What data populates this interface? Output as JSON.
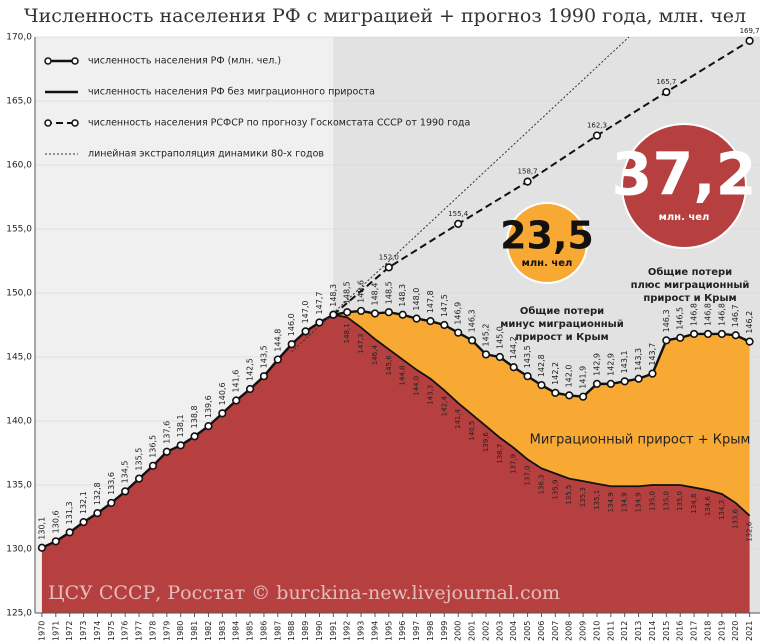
{
  "chart_data": {
    "type": "line",
    "title": "Численность населения РФ с миграцией + прогноз 1990 года, млн. чел",
    "xlim": [
      1969.5,
      2021.75
    ],
    "ylim": [
      125,
      170
    ],
    "xticks": [
      1970,
      1971,
      1972,
      1973,
      1974,
      1975,
      1976,
      1977,
      1978,
      1979,
      1980,
      1981,
      1982,
      1983,
      1984,
      1985,
      1986,
      1987,
      1988,
      1989,
      1990,
      1991,
      1992,
      1993,
      1994,
      1995,
      1996,
      1997,
      1998,
      1999,
      2000,
      2001,
      2002,
      2003,
      2004,
      2005,
      2006,
      2007,
      2008,
      2009,
      2010,
      2011,
      2012,
      2013,
      2014,
      2015,
      2016,
      2017,
      2018,
      2019,
      2020,
      2021
    ],
    "yticks": [
      {
        "value": 125,
        "label": "125,0"
      },
      {
        "value": 130,
        "label": "130,0"
      },
      {
        "value": 135,
        "label": "135,0"
      },
      {
        "value": 140,
        "label": "140,0"
      },
      {
        "value": 145,
        "label": "145,0"
      },
      {
        "value": 150,
        "label": "150,0"
      },
      {
        "value": 155,
        "label": "155,0"
      },
      {
        "value": 160,
        "label": "160,0"
      },
      {
        "value": 165,
        "label": "165,0"
      },
      {
        "value": 170,
        "label": "170,0"
      }
    ],
    "grid": true,
    "series": [
      {
        "name": "численность населения РФ (млн. чел.)",
        "color": "#111111",
        "line_style": "solid",
        "markers": true,
        "x": [
          1970,
          1971,
          1972,
          1973,
          1974,
          1975,
          1976,
          1977,
          1978,
          1979,
          1980,
          1981,
          1982,
          1983,
          1984,
          1985,
          1986,
          1987,
          1988,
          1989,
          1990,
          1991,
          1992,
          1993,
          1994,
          1995,
          1996,
          1997,
          1998,
          1999,
          2000,
          2001,
          2002,
          2003,
          2004,
          2005,
          2006,
          2007,
          2008,
          2009,
          2010,
          2011,
          2012,
          2013,
          2014,
          2015,
          2016,
          2017,
          2018,
          2019,
          2020,
          2021
        ],
        "values": [
          130.1,
          130.6,
          131.3,
          132.1,
          132.8,
          133.6,
          134.5,
          135.5,
          136.5,
          137.6,
          138.1,
          138.8,
          139.6,
          140.6,
          141.6,
          142.5,
          143.5,
          144.8,
          146.0,
          147.0,
          147.7,
          148.3,
          148.5,
          148.6,
          148.4,
          148.5,
          148.3,
          148.0,
          147.8,
          147.5,
          146.9,
          146.3,
          145.2,
          145.0,
          144.2,
          143.5,
          142.8,
          142.2,
          142.0,
          141.9,
          142.9,
          142.9,
          143.1,
          143.3,
          143.7,
          146.3,
          146.5,
          146.8,
          146.8,
          146.8,
          146.7,
          146.2
        ],
        "value_labels": [
          "130,1",
          "130,6",
          "131,3",
          "132,1",
          "132,8",
          "133,6",
          "134,5",
          "135,5",
          "136,5",
          "137,6",
          "138,1",
          "138,8",
          "139,6",
          "140,6",
          "141,6",
          "142,5",
          "143,5",
          "144,8",
          "146,0",
          "147,0",
          "147,7",
          "148,3",
          "148,5",
          "148,6",
          "148,4",
          "148,5",
          "148,3",
          "148,0",
          "147,8",
          "147,5",
          "146,9",
          "146,3",
          "145,2",
          "145,0",
          "144,2",
          "143,5",
          "142,8",
          "142,2",
          "142,0",
          "141,9",
          "142,9",
          "142,9",
          "143,1",
          "143,3",
          "143,7",
          "146,3",
          "146,5",
          "146,8",
          "146,8",
          "146,8",
          "146,7",
          "146,2"
        ]
      },
      {
        "name": "численность населения РФ без миграционного прироста",
        "color": "#111111",
        "line_style": "solid",
        "markers": false,
        "x": [
          1991,
          1992,
          1993,
          1994,
          1995,
          1996,
          1997,
          1998,
          1999,
          2000,
          2001,
          2002,
          2003,
          2004,
          2005,
          2006,
          2007,
          2008,
          2009,
          2010,
          2011,
          2012,
          2013,
          2014,
          2015,
          2016,
          2017,
          2018,
          2019,
          2020,
          2021
        ],
        "values": [
          148.3,
          148.1,
          147.3,
          146.4,
          145.6,
          144.8,
          144.0,
          143.3,
          142.4,
          141.4,
          140.5,
          139.6,
          138.7,
          137.9,
          137.0,
          136.3,
          135.9,
          135.5,
          135.3,
          135.1,
          134.9,
          134.9,
          134.9,
          135.0,
          135.0,
          135.0,
          134.8,
          134.6,
          134.3,
          133.6,
          132.6
        ],
        "value_labels": [
          null,
          "148,1",
          "147,3",
          "146,4",
          "145,6",
          "144,8",
          "144,0",
          "143,3",
          "142,4",
          "141,4",
          "140,5",
          "139,6",
          "138,7",
          "137,9",
          "137,0",
          "136,3",
          "135,9",
          "135,5",
          "135,3",
          "135,1",
          "134,9",
          "134,9",
          "134,9",
          "135,0",
          "135,0",
          "135,0",
          "134,8",
          "134,6",
          "134,3",
          "133,6",
          "132,6"
        ]
      },
      {
        "name": "численность населения РСФСР по прогнозу Госкомстата СССР от 1990 года",
        "color": "#111111",
        "line_style": "dashed",
        "markers": true,
        "x": [
          1991,
          1995,
          2000,
          2005,
          2010,
          2015,
          2021
        ],
        "values": [
          148.3,
          152.0,
          155.4,
          158.7,
          162.3,
          165.7,
          169.7
        ],
        "value_labels": [
          null,
          "152,0",
          "155,4",
          "158,7",
          "162,3",
          "165,7",
          "169,7"
        ]
      },
      {
        "name": "линейная экстраполяция динамики 80-х годов",
        "color": "#333333",
        "line_style": "dotted",
        "markers": false,
        "x": [
          1988,
          2012.3
        ],
        "values": [
          145.4,
          170
        ]
      }
    ],
    "annotations": {
      "loss_minus": {
        "value": "23,5",
        "unit": "млн. чел",
        "color": "#f7a934",
        "lines": [
          "Общие потери",
          "минус миграционный",
          "прирост и Крым"
        ]
      },
      "loss_plus": {
        "value": "37,2",
        "unit": "млн. чел",
        "color": "#b5403f",
        "lines": [
          "Общие потери",
          "плюс миграционный",
          "прирост и Крым"
        ]
      },
      "migration": "Миграционный прирост + Крым",
      "source": "ЦСУ СССР, Росстат © burckina-new.livejournal.com"
    }
  }
}
